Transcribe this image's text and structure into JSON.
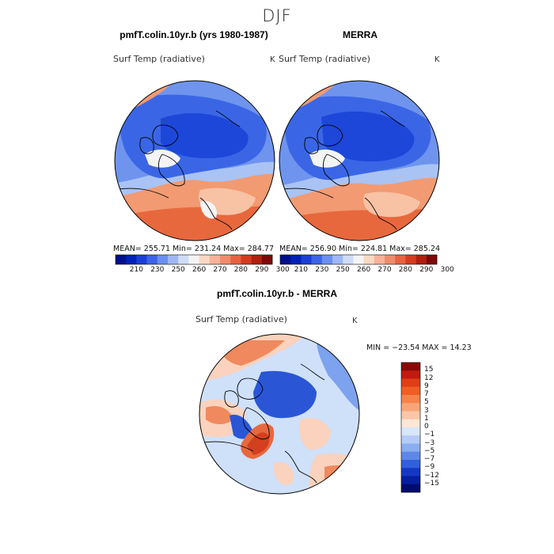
{
  "figure": {
    "season": "DJF",
    "variable_label": "Surf Temp (radiative)",
    "unit": "K"
  },
  "panels": [
    {
      "title": "pmfT.colin.10yr.b (yrs 1980-1987)",
      "stats": {
        "mean": "255.71",
        "min": "231.24",
        "max": "284.77"
      },
      "stats_text": "MEAN= 255.71   Min= 231.24   Max= 284.77"
    },
    {
      "title": "MERRA",
      "stats": {
        "mean": "256.90",
        "min": "224.81",
        "max": "285.24"
      },
      "stats_text": "MEAN= 256.90   Min= 224.81   Max= 285.24"
    },
    {
      "title": "pmfT.colin.10yr.b - MERRA",
      "stats": {
        "min": "-23.54",
        "max": "14.23"
      },
      "stats_text": "MIN = −23.54  MAX =   14.23"
    }
  ],
  "field_colorbar": {
    "tick_labels": [
      "210",
      "230",
      "250",
      "260",
      "270",
      "280",
      "290",
      "300"
    ],
    "colors": [
      "#000f8c",
      "#0021b8",
      "#1a3fd6",
      "#3d63e8",
      "#6b8ff0",
      "#9db8f5",
      "#cfdcf8",
      "#f4f4f4",
      "#fbd8c4",
      "#f7b299",
      "#f08c6c",
      "#e8633f",
      "#d63b1e",
      "#b01f10",
      "#7d0808"
    ]
  },
  "diff_colorbar": {
    "tick_labels": [
      "15",
      "12",
      "9",
      "7",
      "5",
      "3",
      "1",
      "0",
      "−1",
      "−3",
      "−5",
      "−7",
      "−9",
      "−12",
      "−15"
    ],
    "colors_top_to_bottom": [
      "#8a0707",
      "#c21a0f",
      "#e03e17",
      "#f05d25",
      "#f5844a",
      "#f7a578",
      "#fac6a8",
      "#fde6d6",
      "#d8e6fa",
      "#b4ccf5",
      "#8aaeee",
      "#5e88e6",
      "#3260dd",
      "#1538c4",
      "#061f9e",
      "#020c6e"
    ]
  },
  "map_palette": {
    "dark_blue": "#1d47d8",
    "mid_blue": "#3a66e6",
    "light_blue": "#6f94ee",
    "pale_blue": "#a9c3f4",
    "white": "#f4f4f4",
    "pale_orange": "#f8c2a4",
    "orange": "#f29a72",
    "red_orange": "#e8683e",
    "deep_red": "#d2401f",
    "diff_pale_red": "#fad2bd",
    "diff_red": "#f0895e",
    "diff_light_blue": "#cfe0f9",
    "diff_blue": "#7da2ee",
    "diff_dark_blue": "#2a56d6"
  }
}
